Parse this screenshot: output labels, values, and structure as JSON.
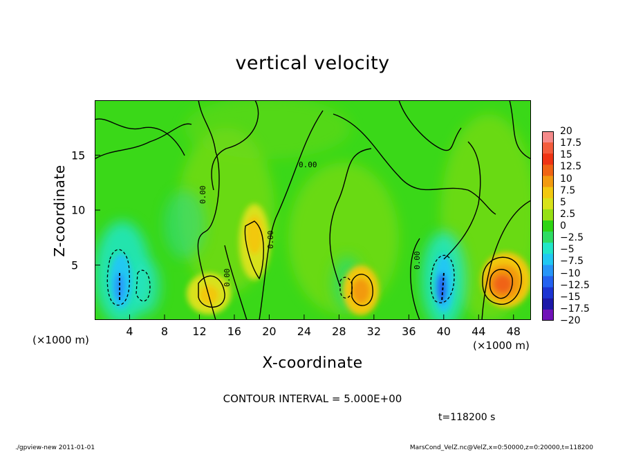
{
  "chart_data": {
    "type": "heatmap",
    "title": "vertical velocity",
    "xlabel": "X-coordinate",
    "ylabel": "Z-coordinate",
    "x_unit_label": "(×1000 m)",
    "x_range": [
      0,
      50
    ],
    "y_range": [
      0,
      20
    ],
    "x_ticks": [
      "4",
      "8",
      "12",
      "16",
      "20",
      "24",
      "28",
      "32",
      "36",
      "40",
      "44",
      "48"
    ],
    "y_ticks": [
      "5",
      "10",
      "15"
    ],
    "colorbar": {
      "labels": [
        "20",
        "17.5",
        "15",
        "12.5",
        "10",
        "7.5",
        "5",
        "2.5",
        "0",
        "−2.5",
        "−5",
        "−7.5",
        "−10",
        "−12.5",
        "−15",
        "−17.5",
        "−20"
      ],
      "colors": [
        "#f58a8a",
        "#f35c3c",
        "#ef3414",
        "#f06414",
        "#f29a10",
        "#f2c810",
        "#d8e21a",
        "#96e014",
        "#2ed414",
        "#2edc64",
        "#22e6c8",
        "#22c8f2",
        "#2896f8",
        "#2462f0",
        "#1c34d2",
        "#1c18a8",
        "#7012b8"
      ]
    },
    "features": [
      {
        "kind": "updraft",
        "x": 46,
        "z": 3.2,
        "peak": 14
      },
      {
        "kind": "updraft",
        "x": 30.5,
        "z": 2.7,
        "peak": 9
      },
      {
        "kind": "updraft",
        "x": 18.5,
        "z": 7.5,
        "peak": 6
      },
      {
        "kind": "updraft",
        "x": 13.5,
        "z": 2.5,
        "peak": 6
      },
      {
        "kind": "downdraft",
        "x": 40.2,
        "z": 3.2,
        "peak": -10
      },
      {
        "kind": "downdraft",
        "x": 3,
        "z": 3.5,
        "peak": -9
      },
      {
        "kind": "downdraft",
        "x": 6,
        "z": 3.0,
        "peak": -4
      }
    ],
    "contour_interval_text": "CONTOUR INTERVAL = 5.000E+00",
    "time_text": "t=118200  s"
  },
  "footer": {
    "left": "./gpview-new   2011-01-01",
    "right": "MarsCond_VelZ.nc@VelZ,x=0:50000,z=0:20000,t=118200"
  }
}
